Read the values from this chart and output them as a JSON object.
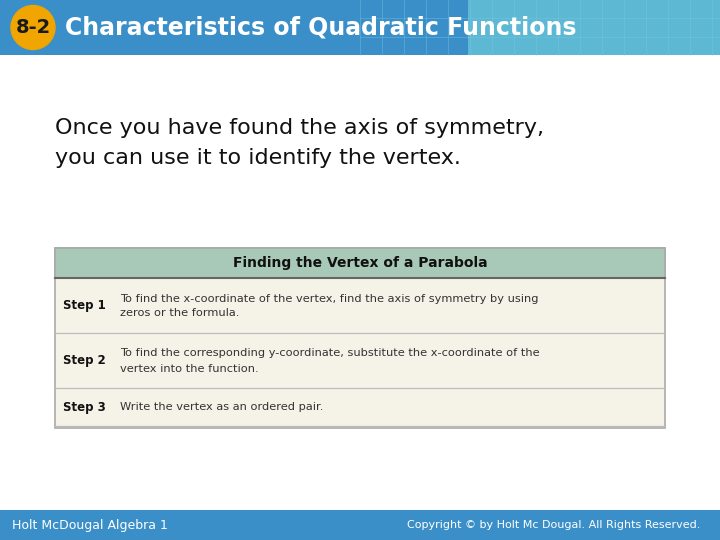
{
  "title_badge": "8-2",
  "title_text": "Characteristics of Quadratic Functions",
  "header_bg": "#3a8fc9",
  "header_bg2": "#5db8d4",
  "badge_color": "#f0a500",
  "badge_text_color": "#1a1a1a",
  "title_text_color": "#ffffff",
  "body_bg": "#ffffff",
  "intro_line1": "Once you have found the axis of symmetry,",
  "intro_line2": "you can use it to identify the vertex.",
  "intro_color": "#111111",
  "box_title": "Finding the Vertex of a Parabola",
  "box_title_bg": "#a8c8b8",
  "box_border_color": "#aaaaaa",
  "box_row_bg": "#f5f2e8",
  "box_separator_color": "#bbbbbb",
  "steps": [
    {
      "label": "Step 1",
      "text1": "To find the x-coordinate of the vertex, find the axis of symmetry by using",
      "text2": "zeros or the formula."
    },
    {
      "label": "Step 2",
      "text1": "To find the corresponding y-coordinate, substitute the x-coordinate of the",
      "text2": "vertex into the function."
    },
    {
      "label": "Step 3",
      "text1": "Write the vertex as an ordered pair.",
      "text2": ""
    }
  ],
  "footer_bg": "#3a8fc9",
  "footer_left": "Holt McDougal Algebra 1",
  "footer_right": "Copyright © by Holt Mc Dougal. All Rights Reserved.",
  "footer_text_color": "#ffffff"
}
